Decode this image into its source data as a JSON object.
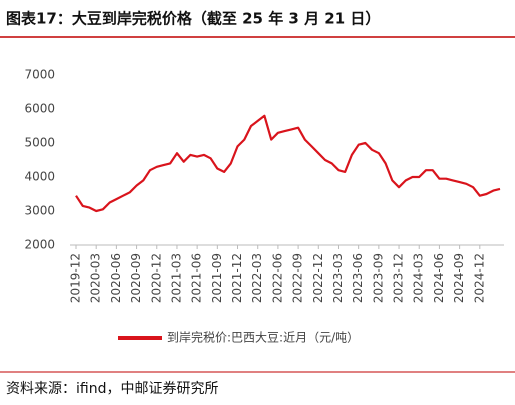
{
  "chart_data": {
    "type": "line",
    "title": "图表17：大豆到岸完税价格（截至 25 年 3 月 21 日）",
    "categories": [
      "2019-12",
      null,
      null,
      "2020-03",
      null,
      null,
      "2020-06",
      null,
      null,
      "2020-09",
      null,
      null,
      "2020-12",
      null,
      null,
      "2021-03",
      null,
      null,
      "2021-06",
      null,
      null,
      "2021-09",
      null,
      null,
      "2021-12",
      null,
      null,
      "2022-03",
      null,
      null,
      "2022-06",
      null,
      null,
      "2022-09",
      null,
      null,
      "2022-12",
      null,
      null,
      "2023-03",
      null,
      null,
      "2023-06",
      null,
      null,
      "2023-09",
      null,
      null,
      "2023-12",
      null,
      null,
      "2024-03",
      null,
      null,
      "2024-06",
      null,
      null,
      "2024-09",
      null,
      null,
      "2024-12",
      null,
      null,
      null
    ],
    "series": [
      {
        "name": "到岸完税价:巴西大豆:近月（元/吨）",
        "color": "#d9141c",
        "values": [
          3450,
          3150,
          3100,
          3000,
          3050,
          3250,
          3350,
          3450,
          3550,
          3750,
          3900,
          4200,
          4300,
          4350,
          4400,
          4700,
          4450,
          4650,
          4600,
          4650,
          4550,
          4250,
          4150,
          4400,
          4900,
          5100,
          5500,
          5650,
          5800,
          5100,
          5300,
          5350,
          5400,
          5450,
          5100,
          4900,
          4700,
          4500,
          4400,
          4200,
          4150,
          4650,
          4950,
          5000,
          4800,
          4700,
          4400,
          3900,
          3700,
          3900,
          4000,
          4000,
          4200,
          4200,
          3950,
          3950,
          3900,
          3850,
          3800,
          3700,
          3450,
          3500,
          3600,
          3650
        ]
      }
    ],
    "ylim": [
      2000,
      7000
    ],
    "yticks": [
      2000,
      3000,
      4000,
      5000,
      6000,
      7000
    ],
    "grid": false
  },
  "footer": {
    "source": "资料来源：ifind，中邮证券研究所"
  }
}
